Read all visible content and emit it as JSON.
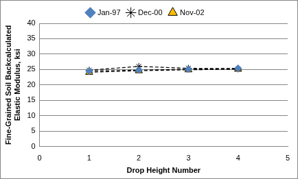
{
  "chart_data": {
    "type": "line",
    "xlabel": "Drop Height Number",
    "ylabel": "Fine-Grained Soil Backcalculated Elastic Modulus, ksi",
    "x": [
      1,
      2,
      3,
      4
    ],
    "series": [
      {
        "name": "Jan-97",
        "color": "#4f81bd",
        "marker": "diamond",
        "line_style": "dashed",
        "values": [
          24.5,
          24.8,
          25.1,
          25.4
        ]
      },
      {
        "name": "Dec-00",
        "color": "#000000",
        "marker": "asterisk",
        "line_style": "dashed",
        "values": [
          24.8,
          26.0,
          25.4,
          25.2
        ]
      },
      {
        "name": "Nov-02",
        "color": "#ffc000",
        "marker": "triangle",
        "line_style": "dashed",
        "values": [
          24.1,
          24.6,
          24.9,
          25.1
        ]
      }
    ],
    "xlim": [
      0,
      5
    ],
    "xticks": [
      0,
      1,
      2,
      3,
      4,
      5
    ],
    "ylim": [
      0,
      40
    ],
    "yticks": [
      0,
      5,
      10,
      15,
      20,
      25,
      30,
      35,
      40
    ],
    "grid": "y",
    "legend": "top"
  }
}
